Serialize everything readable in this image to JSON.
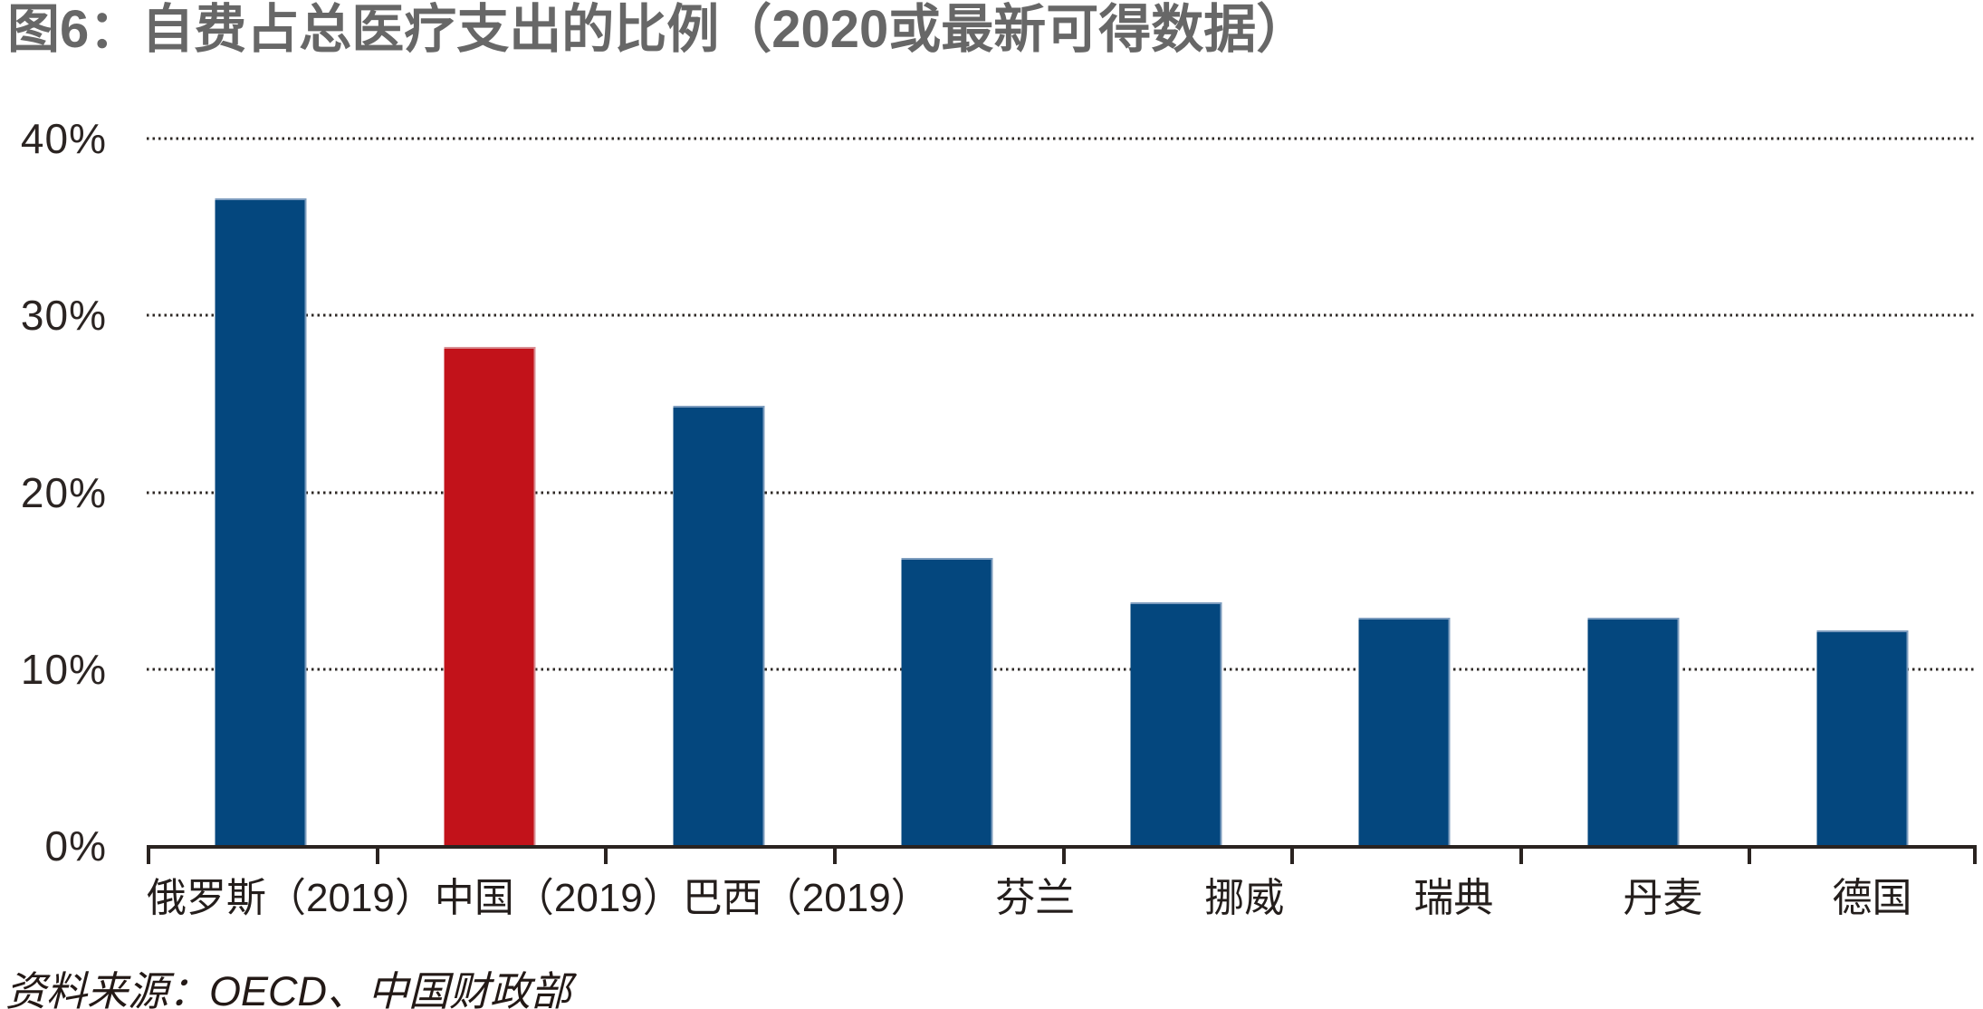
{
  "title": "图6：自费占总医疗支出的比例（2020或最新可得数据）",
  "source": "资料来源：OECD、中国财政部",
  "colors": {
    "bar_default": "#04477e",
    "bar_default_edge": "#7d9cbe",
    "bar_highlight": "#c2121a",
    "bar_highlight_edge": "#d98f94",
    "title_text": "#676767",
    "axis_text": "#2b2422",
    "axis_line": "#2a2320",
    "gridline": "#2e2825",
    "background": "#ffffff"
  },
  "chart_data": {
    "type": "bar",
    "title": "图6：自费占总医疗支出的比例（2020或最新可得数据）",
    "categories": [
      "俄罗斯（2019）",
      "中国（2019）",
      "巴西（2019）",
      "芬兰",
      "挪威",
      "瑞典",
      "丹麦",
      "德国"
    ],
    "category_slugs": [
      "russia-2019",
      "china-2019",
      "brazil-2019",
      "finland",
      "norway",
      "sweden",
      "denmark",
      "germany"
    ],
    "values": [
      36.6,
      28.2,
      24.9,
      16.3,
      13.8,
      12.9,
      12.9,
      12.2
    ],
    "unit": "%",
    "highlight_index": 1,
    "highlight_category": "中国（2019）",
    "xlabel": "",
    "ylabel": "",
    "ylim": [
      0,
      40
    ],
    "yticks": [
      {
        "label": "40%",
        "value": 40
      },
      {
        "label": "30%",
        "value": 30
      },
      {
        "label": "20%",
        "value": 20
      },
      {
        "label": "10%",
        "value": 10
      },
      {
        "label": "0%",
        "value": 0
      }
    ],
    "grid": "horizontal-dotted",
    "legend": "none",
    "source": "资料来源：OECD、中国财政部"
  }
}
